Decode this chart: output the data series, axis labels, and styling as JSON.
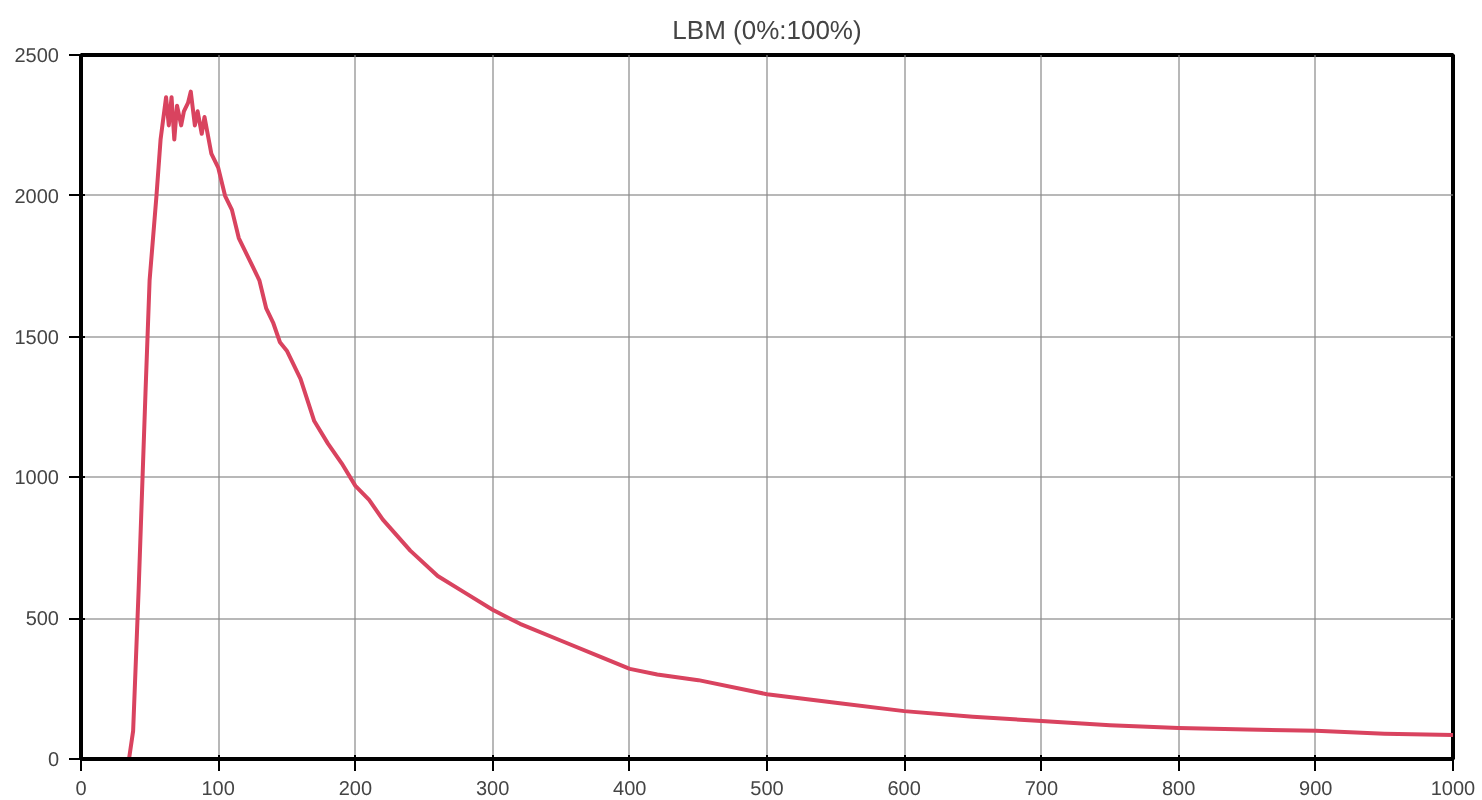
{
  "chart_data": {
    "type": "line",
    "title": "LBM (0%:100%)",
    "x": [
      0,
      35,
      38,
      42,
      47,
      50,
      55,
      58,
      62,
      64,
      66,
      68,
      70,
      73,
      75,
      78,
      80,
      83,
      85,
      88,
      90,
      95,
      100,
      105,
      110,
      115,
      120,
      125,
      130,
      135,
      140,
      145,
      150,
      160,
      170,
      180,
      190,
      200,
      210,
      220,
      240,
      260,
      280,
      300,
      320,
      350,
      380,
      400,
      420,
      450,
      500,
      550,
      600,
      650,
      700,
      750,
      800,
      850,
      900,
      950,
      1000
    ],
    "series": [
      {
        "color": "#d9435f",
        "values": [
          0,
          0,
          100,
          600,
          1300,
          1700,
          2000,
          2200,
          2350,
          2250,
          2350,
          2200,
          2320,
          2250,
          2300,
          2330,
          2370,
          2250,
          2300,
          2220,
          2280,
          2150,
          2100,
          2000,
          1950,
          1850,
          1800,
          1750,
          1700,
          1600,
          1550,
          1480,
          1450,
          1350,
          1200,
          1120,
          1050,
          970,
          920,
          850,
          740,
          650,
          590,
          530,
          480,
          420,
          360,
          320,
          300,
          280,
          230,
          200,
          170,
          150,
          135,
          120,
          110,
          105,
          100,
          90,
          85
        ]
      }
    ],
    "xlim": [
      0,
      1000
    ],
    "xticks": [
      0,
      100,
      200,
      300,
      400,
      500,
      600,
      700,
      800,
      900,
      1000
    ],
    "ylim": [
      0,
      2500
    ],
    "yticks": [
      0,
      500,
      1000,
      1500,
      2000,
      2500
    ],
    "grid": true,
    "marker": "none",
    "line_style": "solid"
  }
}
